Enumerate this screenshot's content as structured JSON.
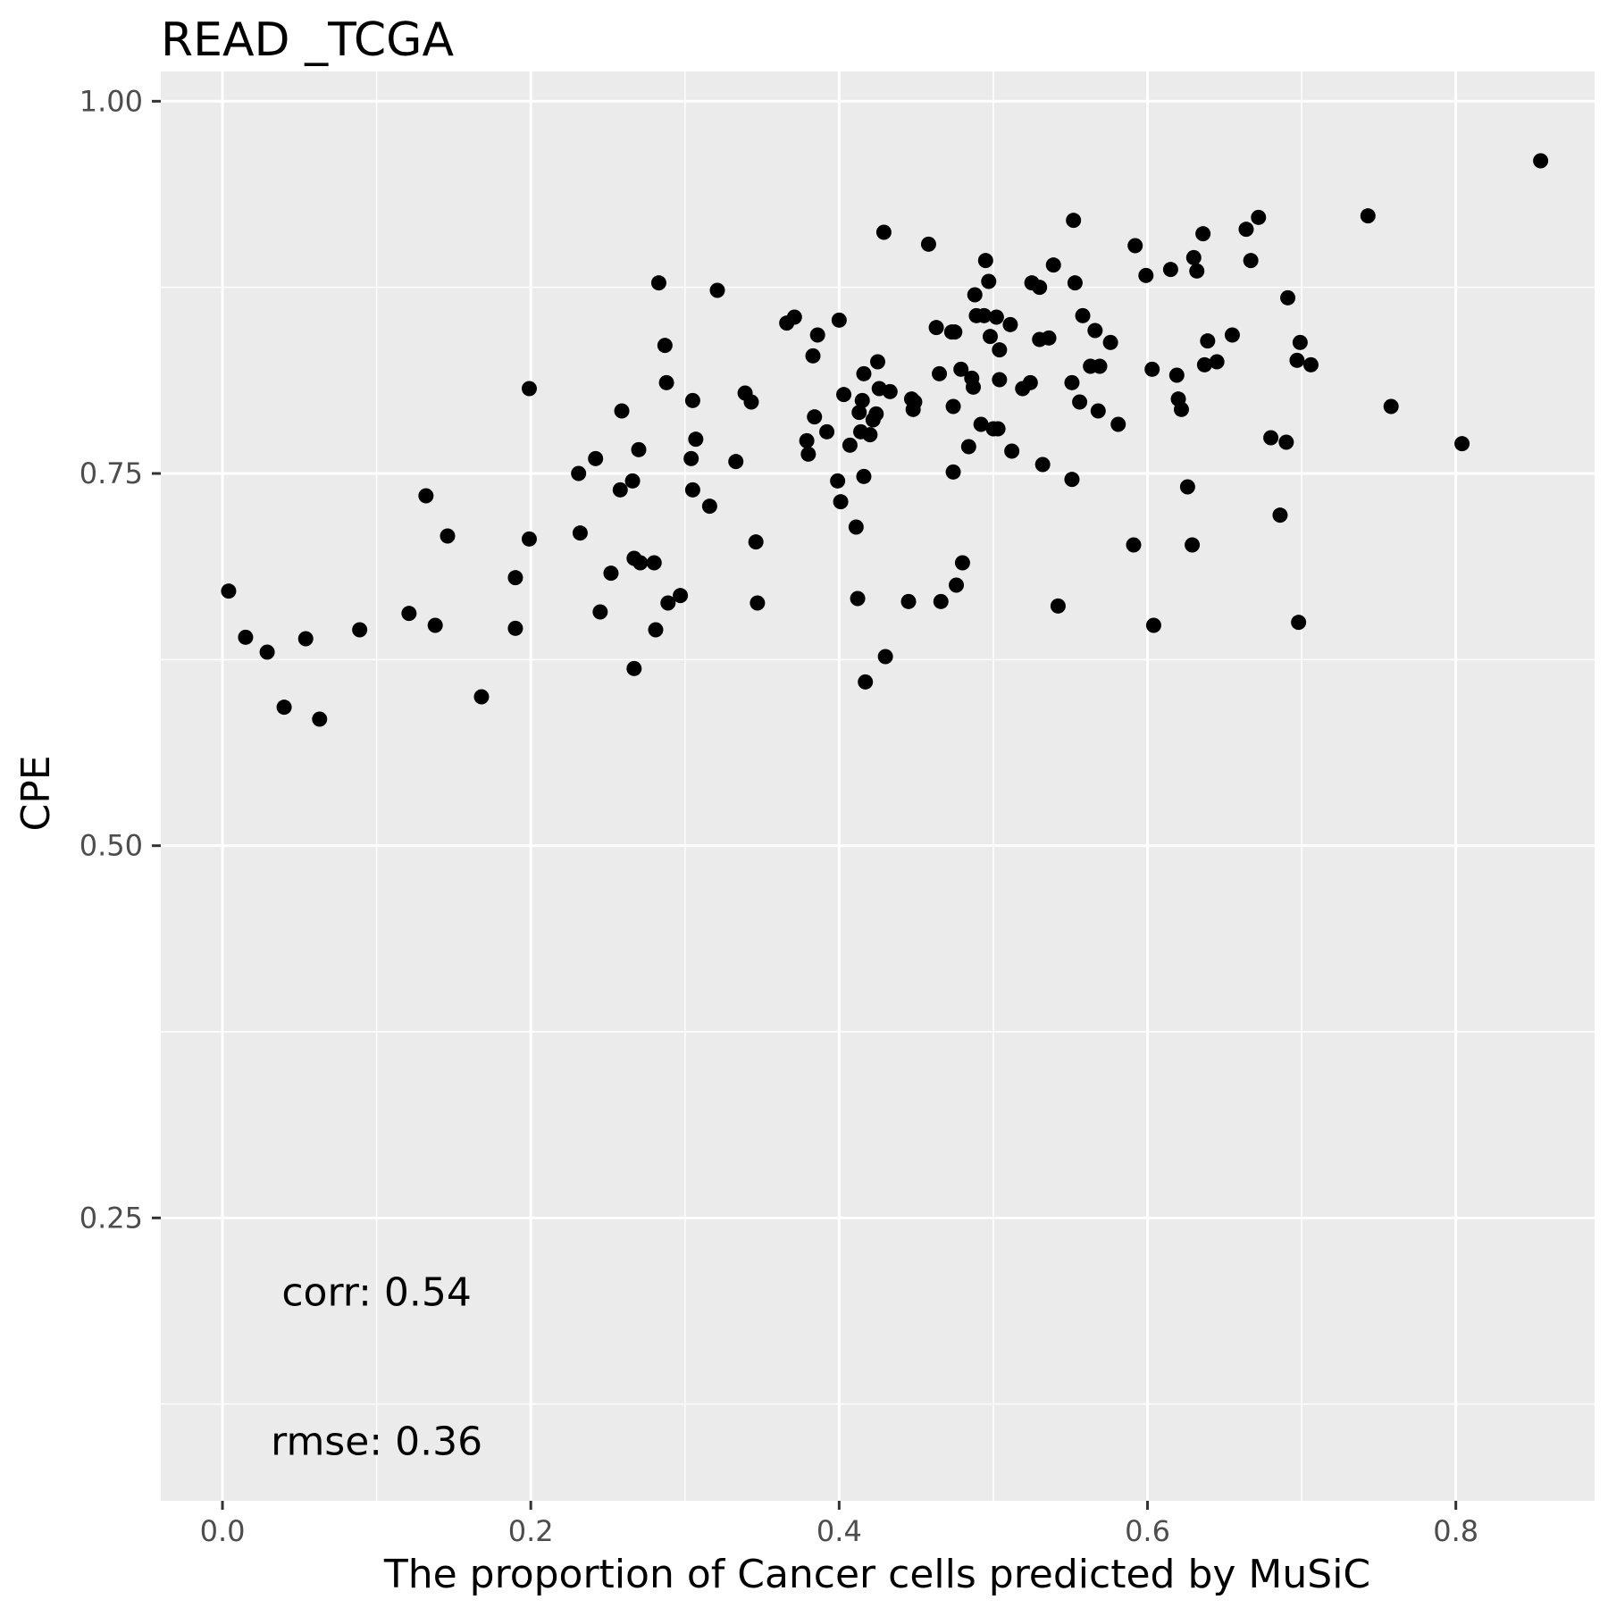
{
  "chart_data": {
    "type": "scatter",
    "title": "READ _TCGA",
    "xlabel": "The proportion of Cancer cells predicted by MuSiC",
    "ylabel": "CPE",
    "xlim": [
      -0.04,
      0.89
    ],
    "ylim": [
      0.06,
      1.02
    ],
    "xticks": [
      0.0,
      0.2,
      0.4,
      0.6,
      0.8
    ],
    "xtick_labels": [
      "0.0",
      "0.2",
      "0.4",
      "0.6",
      "0.8"
    ],
    "yticks": [
      0.25,
      0.5,
      0.75,
      1.0
    ],
    "ytick_labels": [
      "0.25",
      "0.50",
      "0.75",
      "1.00"
    ],
    "grid": true,
    "colors": {
      "panel": "#ebebeb",
      "grid": "#ffffff",
      "point": "#000000",
      "tick": "#333333"
    },
    "annotations": [
      {
        "text": "corr: 0.54",
        "x": 0.1,
        "y": 0.2
      },
      {
        "text": "rmse: 0.36",
        "x": 0.1,
        "y": 0.1
      }
    ],
    "points": [
      [
        0.004,
        0.671
      ],
      [
        0.015,
        0.64
      ],
      [
        0.029,
        0.63
      ],
      [
        0.04,
        0.593
      ],
      [
        0.054,
        0.639
      ],
      [
        0.063,
        0.585
      ],
      [
        0.089,
        0.645
      ],
      [
        0.121,
        0.656
      ],
      [
        0.132,
        0.735
      ],
      [
        0.138,
        0.648
      ],
      [
        0.146,
        0.708
      ],
      [
        0.168,
        0.6
      ],
      [
        0.19,
        0.68
      ],
      [
        0.19,
        0.646
      ],
      [
        0.199,
        0.807
      ],
      [
        0.199,
        0.706
      ],
      [
        0.231,
        0.75
      ],
      [
        0.232,
        0.71
      ],
      [
        0.242,
        0.76
      ],
      [
        0.245,
        0.657
      ],
      [
        0.252,
        0.683
      ],
      [
        0.258,
        0.739
      ],
      [
        0.259,
        0.792
      ],
      [
        0.266,
        0.745
      ],
      [
        0.267,
        0.693
      ],
      [
        0.267,
        0.619
      ],
      [
        0.27,
        0.766
      ],
      [
        0.271,
        0.69
      ],
      [
        0.28,
        0.69
      ],
      [
        0.281,
        0.645
      ],
      [
        0.283,
        0.878
      ],
      [
        0.287,
        0.836
      ],
      [
        0.288,
        0.811
      ],
      [
        0.289,
        0.663
      ],
      [
        0.297,
        0.668
      ],
      [
        0.304,
        0.76
      ],
      [
        0.305,
        0.799
      ],
      [
        0.305,
        0.739
      ],
      [
        0.307,
        0.773
      ],
      [
        0.316,
        0.728
      ],
      [
        0.321,
        0.873
      ],
      [
        0.333,
        0.758
      ],
      [
        0.339,
        0.804
      ],
      [
        0.343,
        0.798
      ],
      [
        0.346,
        0.704
      ],
      [
        0.347,
        0.663
      ],
      [
        0.366,
        0.851
      ],
      [
        0.371,
        0.855
      ],
      [
        0.379,
        0.772
      ],
      [
        0.38,
        0.763
      ],
      [
        0.383,
        0.829
      ],
      [
        0.384,
        0.788
      ],
      [
        0.386,
        0.843
      ],
      [
        0.392,
        0.778
      ],
      [
        0.399,
        0.745
      ],
      [
        0.4,
        0.853
      ],
      [
        0.401,
        0.731
      ],
      [
        0.403,
        0.803
      ],
      [
        0.407,
        0.769
      ],
      [
        0.411,
        0.714
      ],
      [
        0.412,
        0.666
      ],
      [
        0.413,
        0.791
      ],
      [
        0.414,
        0.778
      ],
      [
        0.415,
        0.799
      ],
      [
        0.416,
        0.817
      ],
      [
        0.416,
        0.748
      ],
      [
        0.417,
        0.61
      ],
      [
        0.42,
        0.776
      ],
      [
        0.422,
        0.786
      ],
      [
        0.424,
        0.79
      ],
      [
        0.425,
        0.825
      ],
      [
        0.426,
        0.807
      ],
      [
        0.429,
        0.912
      ],
      [
        0.43,
        0.627
      ],
      [
        0.433,
        0.805
      ],
      [
        0.445,
        0.664
      ],
      [
        0.447,
        0.8
      ],
      [
        0.448,
        0.793
      ],
      [
        0.449,
        0.798
      ],
      [
        0.458,
        0.904
      ],
      [
        0.463,
        0.848
      ],
      [
        0.465,
        0.817
      ],
      [
        0.466,
        0.664
      ],
      [
        0.473,
        0.845
      ],
      [
        0.474,
        0.795
      ],
      [
        0.474,
        0.751
      ],
      [
        0.475,
        0.845
      ],
      [
        0.476,
        0.675
      ],
      [
        0.479,
        0.82
      ],
      [
        0.48,
        0.69
      ],
      [
        0.484,
        0.768
      ],
      [
        0.486,
        0.814
      ],
      [
        0.487,
        0.808
      ],
      [
        0.488,
        0.87
      ],
      [
        0.489,
        0.856
      ],
      [
        0.492,
        0.783
      ],
      [
        0.494,
        0.856
      ],
      [
        0.495,
        0.893
      ],
      [
        0.497,
        0.879
      ],
      [
        0.498,
        0.842
      ],
      [
        0.5,
        0.78
      ],
      [
        0.502,
        0.855
      ],
      [
        0.503,
        0.78
      ],
      [
        0.504,
        0.813
      ],
      [
        0.504,
        0.833
      ],
      [
        0.511,
        0.85
      ],
      [
        0.512,
        0.765
      ],
      [
        0.519,
        0.807
      ],
      [
        0.524,
        0.811
      ],
      [
        0.525,
        0.878
      ],
      [
        0.53,
        0.875
      ],
      [
        0.53,
        0.84
      ],
      [
        0.532,
        0.756
      ],
      [
        0.536,
        0.841
      ],
      [
        0.539,
        0.89
      ],
      [
        0.542,
        0.661
      ],
      [
        0.551,
        0.746
      ],
      [
        0.551,
        0.811
      ],
      [
        0.552,
        0.92
      ],
      [
        0.553,
        0.878
      ],
      [
        0.556,
        0.798
      ],
      [
        0.558,
        0.856
      ],
      [
        0.563,
        0.822
      ],
      [
        0.566,
        0.846
      ],
      [
        0.568,
        0.792
      ],
      [
        0.569,
        0.822
      ],
      [
        0.576,
        0.838
      ],
      [
        0.581,
        0.783
      ],
      [
        0.591,
        0.702
      ],
      [
        0.592,
        0.903
      ],
      [
        0.599,
        0.883
      ],
      [
        0.603,
        0.82
      ],
      [
        0.604,
        0.648
      ],
      [
        0.615,
        0.887
      ],
      [
        0.619,
        0.816
      ],
      [
        0.62,
        0.8
      ],
      [
        0.622,
        0.793
      ],
      [
        0.626,
        0.741
      ],
      [
        0.629,
        0.702
      ],
      [
        0.63,
        0.895
      ],
      [
        0.632,
        0.886
      ],
      [
        0.636,
        0.911
      ],
      [
        0.637,
        0.823
      ],
      [
        0.639,
        0.839
      ],
      [
        0.645,
        0.825
      ],
      [
        0.655,
        0.843
      ],
      [
        0.664,
        0.914
      ],
      [
        0.667,
        0.893
      ],
      [
        0.672,
        0.922
      ],
      [
        0.68,
        0.774
      ],
      [
        0.686,
        0.722
      ],
      [
        0.69,
        0.771
      ],
      [
        0.691,
        0.868
      ],
      [
        0.697,
        0.826
      ],
      [
        0.698,
        0.65
      ],
      [
        0.699,
        0.838
      ],
      [
        0.706,
        0.823
      ],
      [
        0.743,
        0.923
      ],
      [
        0.758,
        0.795
      ],
      [
        0.804,
        0.77
      ],
      [
        0.855,
        0.96
      ]
    ]
  }
}
